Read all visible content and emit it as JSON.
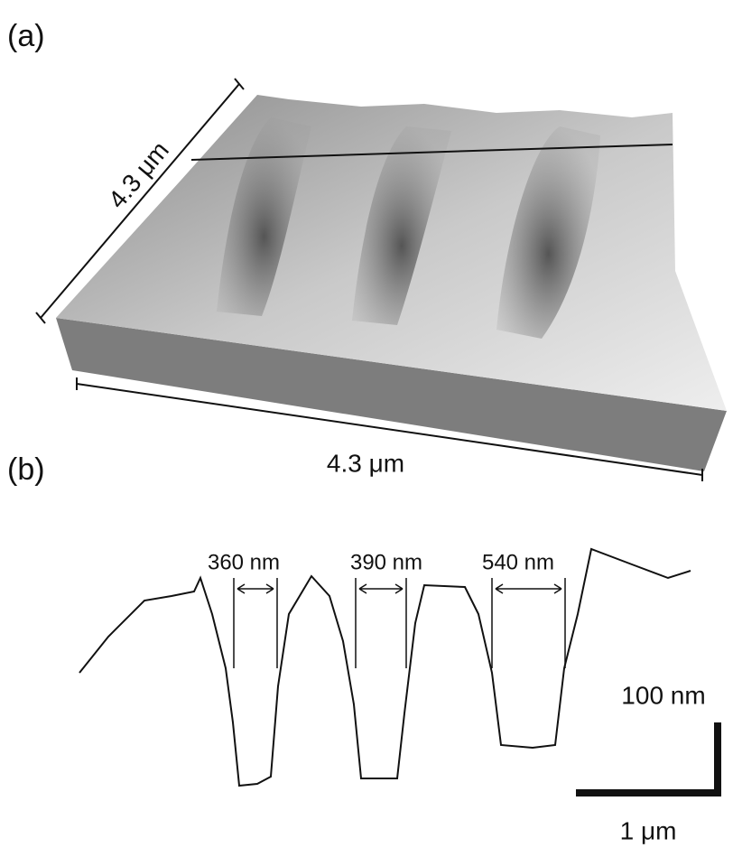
{
  "panel_a": {
    "label": "(a)",
    "depth_size": "4.3 μm",
    "width_size": "4.3 μm"
  },
  "panel_b": {
    "label": "(b)",
    "gap_widths": [
      "360 nm",
      "390 nm",
      "540 nm"
    ],
    "scale_height": "100 nm",
    "scale_width": "1 μm"
  }
}
